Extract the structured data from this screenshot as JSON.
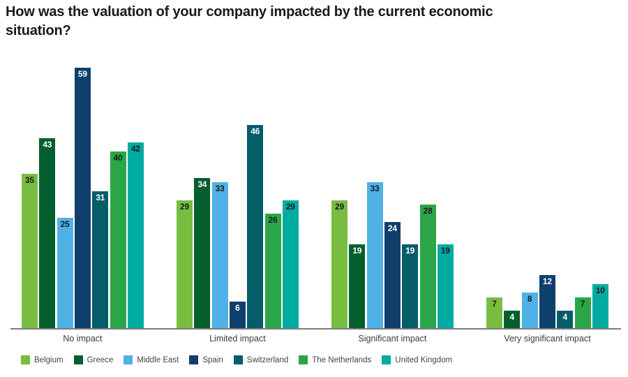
{
  "title": "How was the valuation of your company impacted by the current economic situation?",
  "chart_data": {
    "type": "bar",
    "title": "How was the valuation of your company impacted by the current economic situation?",
    "categories": [
      "No impact",
      "Limited impact",
      "Significant impact",
      "Very significant impact"
    ],
    "series": [
      {
        "name": "Belgium",
        "color": "#79BD40",
        "value_label_color": "#1B1B1B",
        "values": [
          35,
          29,
          29,
          7
        ]
      },
      {
        "name": "Greece",
        "color": "#035F2E",
        "value_label_color": "#FFFFFF",
        "values": [
          43,
          34,
          19,
          4
        ]
      },
      {
        "name": "Middle East",
        "color": "#4FB1E6",
        "value_label_color": "#1B1B1B",
        "values": [
          25,
          33,
          33,
          8
        ]
      },
      {
        "name": "Spain",
        "color": "#0E3F6D",
        "value_label_color": "#FFFFFF",
        "values": [
          59,
          6,
          24,
          12
        ]
      },
      {
        "name": "Switzerland",
        "color": "#045D69",
        "value_label_color": "#FFFFFF",
        "values": [
          31,
          46,
          19,
          4
        ]
      },
      {
        "name": "The Netherlands",
        "color": "#2AA648",
        "value_label_color": "#1B1B1B",
        "values": [
          40,
          26,
          28,
          7
        ]
      },
      {
        "name": "United Kingdom",
        "color": "#00ABA1",
        "value_label_color": "#1B1B1B",
        "values": [
          42,
          29,
          19,
          10
        ]
      }
    ],
    "ylim": [
      0,
      59
    ],
    "xlabel": "",
    "ylabel": "",
    "grid": false,
    "value_labels": "inside-top",
    "legend_position": "bottom",
    "axis_line_color": "#7B7B7B",
    "background_color": "#FFFFFF"
  }
}
